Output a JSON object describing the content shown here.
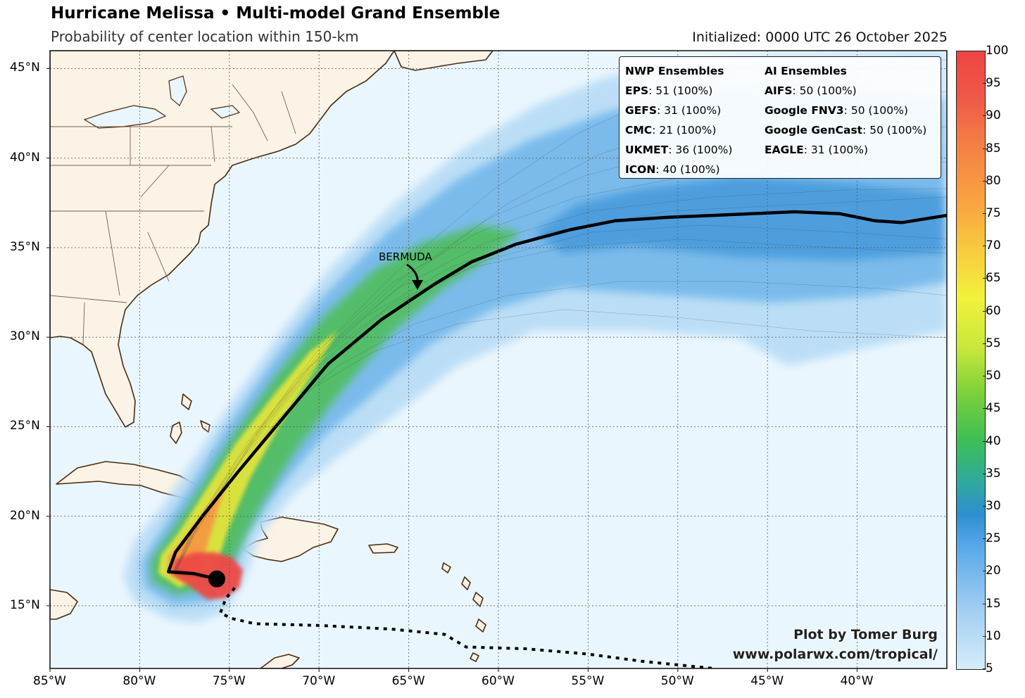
{
  "header": {
    "title": "Hurricane Melissa • Multi-model Grand Ensemble",
    "subtitle": "Probability of center location within 150-km",
    "initialized": "Initialized: 0000 UTC 26 October 2025"
  },
  "legend": {
    "nwp_header": "NWP Ensembles",
    "ai_header": "AI Ensembles",
    "nwp": [
      {
        "name": "EPS",
        "value": ": 51 (100%)"
      },
      {
        "name": "GEFS",
        "value": ": 31 (100%)"
      },
      {
        "name": "CMC",
        "value": ": 21 (100%)"
      },
      {
        "name": "UKMET",
        "value": ": 36 (100%)"
      },
      {
        "name": "ICON",
        "value": ": 40 (100%)"
      }
    ],
    "ai": [
      {
        "name": "AIFS",
        "value": ": 50 (100%)"
      },
      {
        "name": "Google FNV3",
        "value": ": 50 (100%)"
      },
      {
        "name": "Google GenCast",
        "value": ": 50 (100%)"
      },
      {
        "name": "EAGLE",
        "value": ": 31 (100%)"
      }
    ]
  },
  "map": {
    "lon_range": [
      -85,
      -35
    ],
    "lat_range": [
      11.5,
      46
    ],
    "lon_ticks": [
      -85,
      -80,
      -75,
      -70,
      -65,
      -60,
      -55,
      -50,
      -45,
      -40
    ],
    "lon_labels": [
      "85°W",
      "80°W",
      "75°W",
      "70°W",
      "65°W",
      "60°W",
      "55°W",
      "50°W",
      "45°W",
      "40°W"
    ],
    "lat_ticks": [
      15,
      20,
      25,
      30,
      35,
      40,
      45
    ],
    "lat_labels": [
      "15°N",
      "20°N",
      "25°N",
      "30°N",
      "35°N",
      "40°N",
      "45°N"
    ],
    "annotation": "BERMUDA",
    "colors": {
      "ocean": "#eaf6fd",
      "land": "#fbf3e6",
      "coast": "#4a2a10",
      "track": "#000000"
    },
    "mean_track": [
      [
        -75.7,
        16.5
      ],
      [
        -77,
        16.8
      ],
      [
        -78.4,
        16.9
      ],
      [
        -78,
        18
      ],
      [
        -76.5,
        20
      ],
      [
        -74.5,
        22.5
      ],
      [
        -72,
        25.5
      ],
      [
        -69.5,
        28.5
      ],
      [
        -66.5,
        31
      ],
      [
        -63.5,
        33
      ],
      [
        -61.5,
        34.2
      ],
      [
        -59,
        35.2
      ],
      [
        -56,
        36
      ],
      [
        -53.5,
        36.5
      ],
      [
        -50.5,
        36.7
      ],
      [
        -48,
        36.8
      ],
      [
        -43.5,
        37
      ],
      [
        -41,
        36.9
      ],
      [
        -39,
        36.5
      ],
      [
        -37.5,
        36.4
      ],
      [
        -35,
        36.8
      ]
    ],
    "past_track": [
      [
        -74.7,
        16.0
      ],
      [
        -75.2,
        15.4
      ],
      [
        -75.5,
        14.6
      ],
      [
        -74.9,
        14.3
      ],
      [
        -73.6,
        14.0
      ],
      [
        -70,
        13.9
      ],
      [
        -66,
        13.7
      ],
      [
        -63,
        13.4
      ],
      [
        -61.8,
        12.7
      ],
      [
        -58.5,
        12.6
      ],
      [
        -55,
        12.3
      ],
      [
        -52,
        11.9
      ],
      [
        -48,
        11.5
      ]
    ],
    "storm_center": [
      -75.7,
      16.5
    ]
  },
  "colorbar": {
    "ticks": [
      5,
      10,
      15,
      20,
      25,
      30,
      35,
      40,
      45,
      50,
      55,
      60,
      65,
      70,
      75,
      80,
      85,
      90,
      95,
      100
    ]
  },
  "credit": {
    "line1": "Plot by Tomer Burg",
    "line2": "www.polarwx.com/tropical/"
  }
}
